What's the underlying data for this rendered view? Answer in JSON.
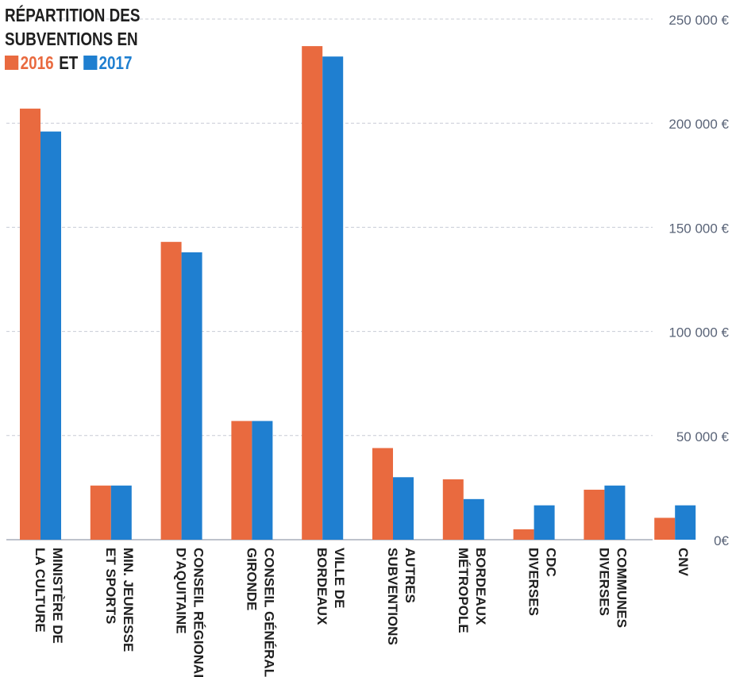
{
  "title_line1": "RÉPARTITION DES",
  "title_line2": "SUBVENTIONS EN",
  "legend": {
    "y2016": "2016",
    "sep": "ET",
    "y2017": "2017"
  },
  "colors": {
    "y2016": "#e96a3f",
    "y2017": "#1f7fd0",
    "grid": "#c8ccd6",
    "tick_text": "#5a6478",
    "label_text": "#1f1f1f"
  },
  "chart_data": {
    "type": "bar",
    "title": "RÉPARTITION DES SUBVENTIONS EN 2016 ET 2017",
    "categories": [
      [
        "MINISTÈRE DE",
        "LA CULTURE"
      ],
      [
        "MIN. JEUNESSE",
        "ET SPORTS"
      ],
      [
        "CONSEIL RÉGIONAL",
        "D'AQUITAINE"
      ],
      [
        "CONSEIL GÉNÉRAL",
        "GIRONDE"
      ],
      [
        "VILLE DE",
        "BORDEAUX"
      ],
      [
        "AUTRES",
        "SUBVENTIONS"
      ],
      [
        "BORDEAUX",
        "MÉTROPOLE"
      ],
      [
        "CDC",
        "DIVERSES"
      ],
      [
        "COMMUNES",
        "DIVERSES"
      ],
      [
        "CNV"
      ]
    ],
    "series": [
      {
        "name": "2016",
        "values": [
          207000,
          26000,
          143000,
          57000,
          237000,
          44000,
          29000,
          5000,
          24000,
          10500
        ]
      },
      {
        "name": "2017",
        "values": [
          196000,
          26000,
          138000,
          57000,
          232000,
          30000,
          19500,
          16500,
          26000,
          16500
        ]
      }
    ],
    "ylim": [
      0,
      250000
    ],
    "yticks": [
      0,
      50000,
      100000,
      150000,
      200000,
      250000
    ],
    "ytick_labels": [
      "0€",
      "50 000 €",
      "100 000 €",
      "150 000 €",
      "200 000 €",
      "250 000 €"
    ],
    "grid": true,
    "y_axis_side": "right",
    "legend_position": "top-left"
  }
}
